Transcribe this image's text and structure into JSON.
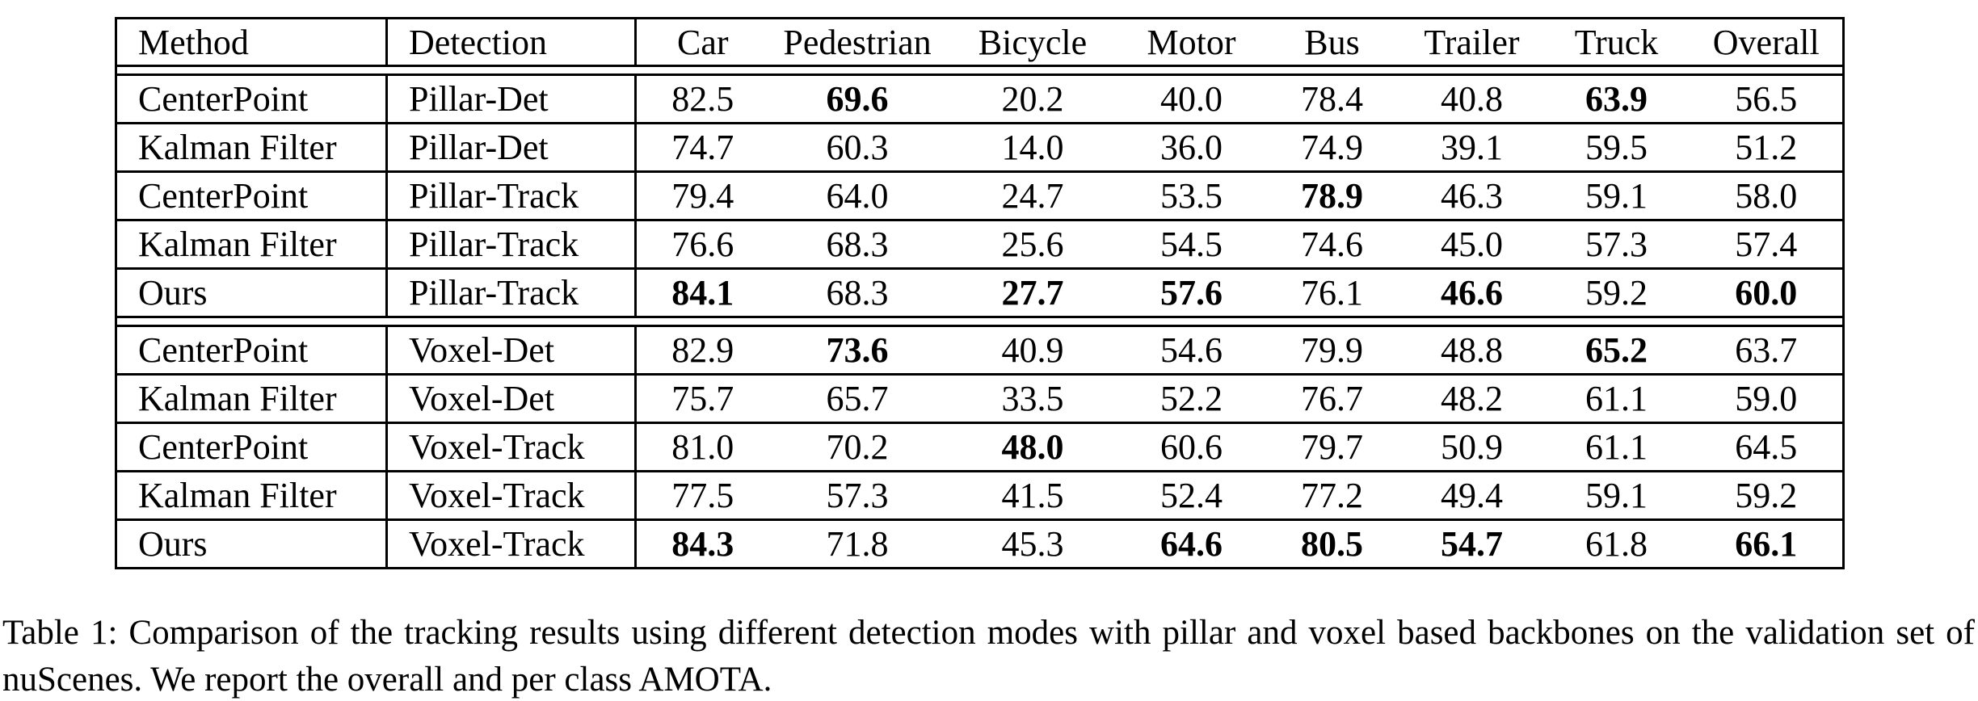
{
  "table": {
    "columns": [
      "Method",
      "Detection",
      "Car",
      "Pedestrian",
      "Bicycle",
      "Motor",
      "Bus",
      "Trailer",
      "Truck",
      "Overall"
    ],
    "groups": [
      {
        "name": "pillar-backbone",
        "rows": [
          {
            "method": "CenterPoint",
            "detection": "Pillar-Det",
            "values": [
              "82.5",
              "69.6",
              "20.2",
              "40.0",
              "78.4",
              "40.8",
              "63.9",
              "56.5"
            ],
            "bold": [
              0,
              1,
              0,
              0,
              0,
              0,
              1,
              0
            ]
          },
          {
            "method": "Kalman Filter",
            "detection": "Pillar-Det",
            "values": [
              "74.7",
              "60.3",
              "14.0",
              "36.0",
              "74.9",
              "39.1",
              "59.5",
              "51.2"
            ],
            "bold": [
              0,
              0,
              0,
              0,
              0,
              0,
              0,
              0
            ]
          },
          {
            "method": "CenterPoint",
            "detection": "Pillar-Track",
            "values": [
              "79.4",
              "64.0",
              "24.7",
              "53.5",
              "78.9",
              "46.3",
              "59.1",
              "58.0"
            ],
            "bold": [
              0,
              0,
              0,
              0,
              1,
              0,
              0,
              0
            ]
          },
          {
            "method": "Kalman Filter",
            "detection": "Pillar-Track",
            "values": [
              "76.6",
              "68.3",
              "25.6",
              "54.5",
              "74.6",
              "45.0",
              "57.3",
              "57.4"
            ],
            "bold": [
              0,
              0,
              0,
              0,
              0,
              0,
              0,
              0
            ]
          },
          {
            "method": "Ours",
            "detection": "Pillar-Track",
            "values": [
              "84.1",
              "68.3",
              "27.7",
              "57.6",
              "76.1",
              "46.6",
              "59.2",
              "60.0"
            ],
            "bold": [
              1,
              0,
              1,
              1,
              0,
              1,
              0,
              1
            ]
          }
        ]
      },
      {
        "name": "voxel-backbone",
        "rows": [
          {
            "method": "CenterPoint",
            "detection": "Voxel-Det",
            "values": [
              "82.9",
              "73.6",
              "40.9",
              "54.6",
              "79.9",
              "48.8",
              "65.2",
              "63.7"
            ],
            "bold": [
              0,
              1,
              0,
              0,
              0,
              0,
              1,
              0
            ]
          },
          {
            "method": "Kalman Filter",
            "detection": "Voxel-Det",
            "values": [
              "75.7",
              "65.7",
              "33.5",
              "52.2",
              "76.7",
              "48.2",
              "61.1",
              "59.0"
            ],
            "bold": [
              0,
              0,
              0,
              0,
              0,
              0,
              0,
              0
            ]
          },
          {
            "method": "CenterPoint",
            "detection": "Voxel-Track",
            "values": [
              "81.0",
              "70.2",
              "48.0",
              "60.6",
              "79.7",
              "50.9",
              "61.1",
              "64.5"
            ],
            "bold": [
              0,
              0,
              1,
              0,
              0,
              0,
              0,
              0
            ]
          },
          {
            "method": "Kalman Filter",
            "detection": "Voxel-Track",
            "values": [
              "77.5",
              "57.3",
              "41.5",
              "52.4",
              "77.2",
              "49.4",
              "59.1",
              "59.2"
            ],
            "bold": [
              0,
              0,
              0,
              0,
              0,
              0,
              0,
              0
            ]
          },
          {
            "method": "Ours",
            "detection": "Voxel-Track",
            "values": [
              "84.3",
              "71.8",
              "45.3",
              "64.6",
              "80.5",
              "54.7",
              "61.8",
              "66.1"
            ],
            "bold": [
              1,
              0,
              0,
              1,
              1,
              1,
              0,
              1
            ]
          }
        ]
      }
    ]
  },
  "caption": {
    "label": "Table 1:",
    "text": "Comparison of the tracking results using different detection modes with pillar and voxel based backbones on the validation set of nuScenes. We report the overall and per class AMOTA."
  }
}
